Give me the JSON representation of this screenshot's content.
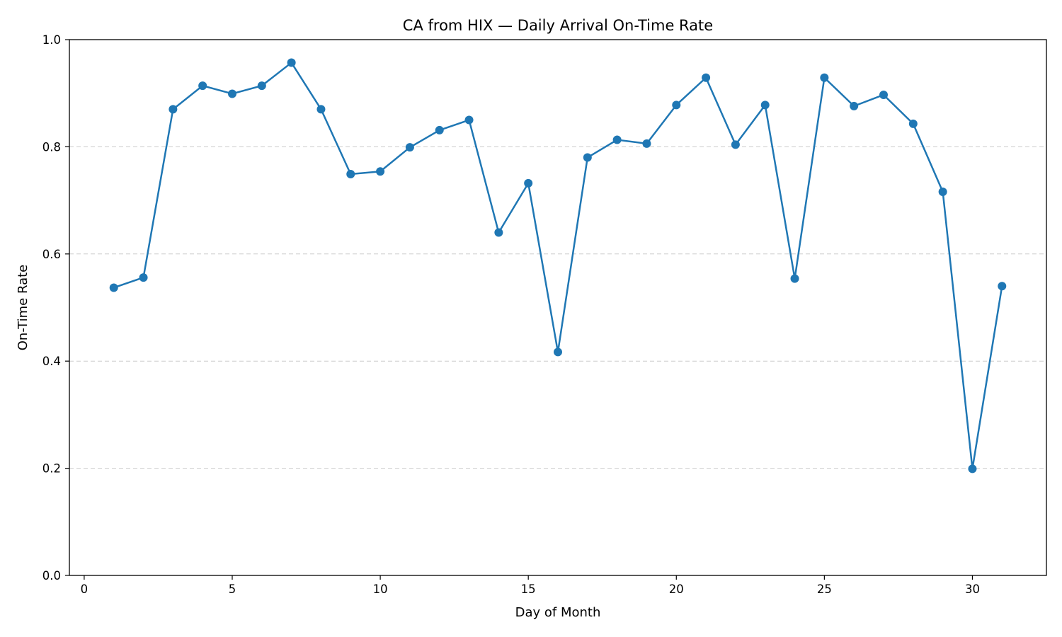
{
  "chart_data": {
    "type": "line",
    "title": "CA from HIX — Daily Arrival On-Time Rate",
    "xlabel": "Day of Month",
    "ylabel": "On-Time Rate",
    "xlim": [
      -0.5,
      32.5
    ],
    "ylim": [
      0,
      1
    ],
    "xticks": [
      0,
      5,
      10,
      15,
      20,
      25,
      30
    ],
    "yticks": [
      0.0,
      0.2,
      0.4,
      0.6,
      0.8,
      1.0
    ],
    "grid": {
      "y": true,
      "x": false,
      "style": "dashed"
    },
    "series": [
      {
        "color": "#1f77b4",
        "marker": "circle",
        "x": [
          1,
          2,
          3,
          4,
          5,
          6,
          7,
          8,
          9,
          10,
          11,
          12,
          13,
          14,
          15,
          16,
          17,
          18,
          19,
          20,
          21,
          22,
          23,
          24,
          25,
          26,
          27,
          28,
          29,
          30,
          31
        ],
        "values": [
          0.537,
          0.556,
          0.87,
          0.914,
          0.899,
          0.914,
          0.957,
          0.87,
          0.749,
          0.754,
          0.799,
          0.831,
          0.85,
          0.64,
          0.732,
          0.417,
          0.78,
          0.813,
          0.806,
          0.878,
          0.929,
          0.804,
          0.878,
          0.554,
          0.929,
          0.876,
          0.897,
          0.843,
          0.716,
          0.199,
          0.54
        ]
      }
    ]
  }
}
